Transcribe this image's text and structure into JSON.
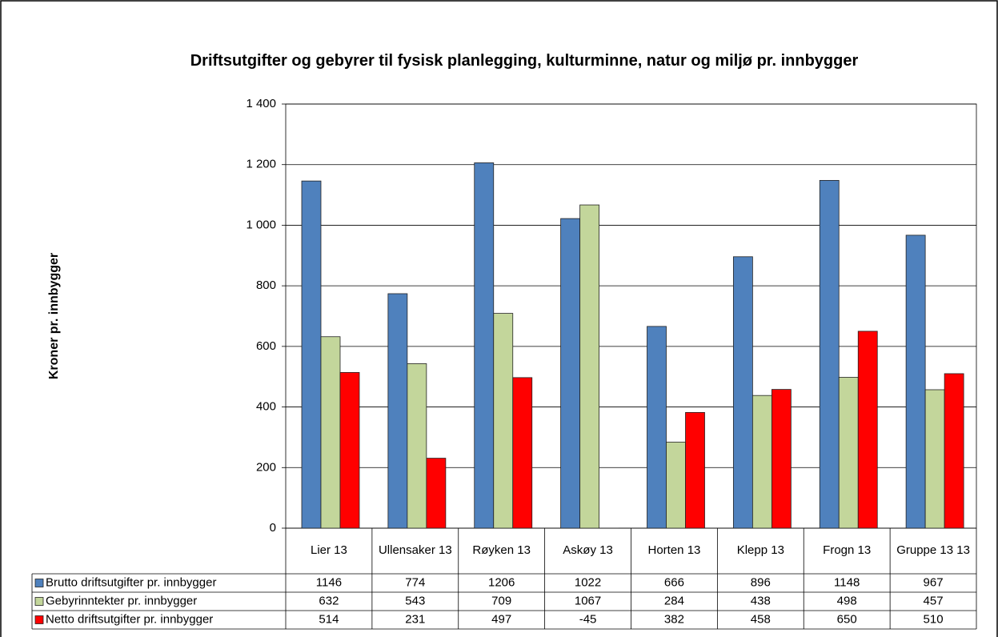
{
  "chart_data": {
    "type": "bar",
    "title": "Driftsutgifter og gebyrer til fysisk planlegging, kulturminne, natur og miljø pr. innbygger",
    "y_label": "Kroner pr. innbygger",
    "categories": [
      "Lier 13",
      "Ullensaker 13",
      "Røyken 13",
      "Askøy 13",
      "Horten 13",
      "Klepp 13",
      "Frogn 13",
      "Gruppe 13 13"
    ],
    "series": [
      {
        "name": "Brutto driftsutgifter pr. innbygger",
        "color": "#4f81bd",
        "values": [
          1146,
          774,
          1206,
          1022,
          666,
          896,
          1148,
          967
        ]
      },
      {
        "name": "Gebyrinntekter pr. innbygger",
        "color": "#c3d69b",
        "values": [
          632,
          543,
          709,
          1067,
          284,
          438,
          498,
          457
        ]
      },
      {
        "name": "Netto driftsutgifter pr. innbygger",
        "color": "#ff0000",
        "values": [
          514,
          231,
          497,
          -45,
          382,
          458,
          650,
          510
        ]
      }
    ],
    "ylim": [
      0,
      1400
    ],
    "yticks": [
      0,
      200,
      400,
      600,
      800,
      {
        "value": 1000,
        "label": "1 000"
      },
      {
        "value": 1200,
        "label": "1 200"
      },
      {
        "value": 1400,
        "label": "1 400"
      }
    ],
    "grid": true,
    "data_table": true
  }
}
